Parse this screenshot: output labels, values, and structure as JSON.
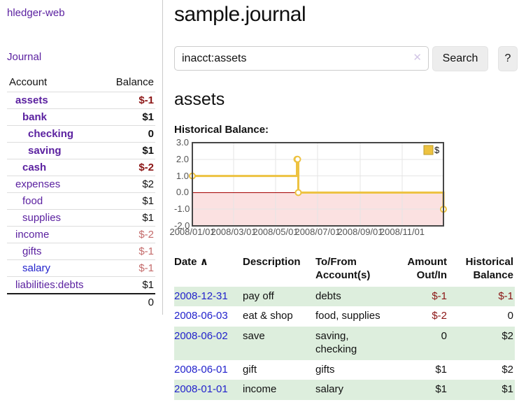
{
  "sidebar": {
    "app_title": "hledger-web",
    "journal_label": "Journal",
    "accounts": {
      "header_account": "Account",
      "header_balance": "Balance",
      "rows": [
        {
          "name": "assets",
          "balance": "$-1"
        },
        {
          "name": "bank",
          "balance": "$1"
        },
        {
          "name": "checking",
          "balance": "0"
        },
        {
          "name": "saving",
          "balance": "$1"
        },
        {
          "name": "cash",
          "balance": "$-2"
        },
        {
          "name": "expenses",
          "balance": "$2"
        },
        {
          "name": "food",
          "balance": "$1"
        },
        {
          "name": "supplies",
          "balance": "$1"
        },
        {
          "name": "income",
          "balance": "$-2"
        },
        {
          "name": "gifts",
          "balance": "$-1"
        },
        {
          "name": "salary",
          "balance": "$-1"
        },
        {
          "name": "liabilities:debts",
          "balance": "$1"
        }
      ],
      "total": "0"
    }
  },
  "main": {
    "title": "sample.journal",
    "search": {
      "value": "inacct:assets",
      "clear_icon": "✕",
      "button_label": "Search",
      "help_label": "?"
    },
    "account_heading": "assets",
    "chart_label": "Historical Balance:"
  },
  "chart_data": {
    "type": "line",
    "title": "Historical Balance",
    "series": [
      {
        "name": "$",
        "step": true,
        "points": [
          [
            "2008-01-01",
            1
          ],
          [
            "2008-06-01",
            2
          ],
          [
            "2008-06-02",
            2
          ],
          [
            "2008-06-03",
            0
          ],
          [
            "2008-12-31",
            -1
          ]
        ]
      }
    ],
    "x_range": [
      "2008-01-01",
      "2008-12-31"
    ],
    "ylim": [
      -2,
      3
    ],
    "y_ticks": [
      "3.0",
      "2.0",
      "1.0",
      "0.0",
      "-1.0",
      "-2.0"
    ],
    "x_ticks": [
      "2008/01/01",
      "2008/03/01",
      "2008/05/01",
      "2008/07/01",
      "2008/09/01",
      "2008/11/01"
    ],
    "grid": true,
    "legend_position": "top-right",
    "colors": {
      "series": "#edc240",
      "marker_fill": "#ffffff",
      "negative_region": "#fbe1e1",
      "zero_line": "#a40000",
      "grid": "#e5e5e5",
      "border": "#474747",
      "tick_text": "#545454"
    }
  },
  "register": {
    "headers": {
      "date": "Date",
      "sort_icon": "∧",
      "description": "Description",
      "accounts": "To/From Account(s)",
      "amount": "Amount Out/In",
      "balance": "Historical Balance"
    },
    "rows": [
      {
        "date": "2008-12-31",
        "description": "pay off",
        "accounts": "debts",
        "amount": "$-1",
        "balance": "$-1"
      },
      {
        "date": "2008-06-03",
        "description": "eat & shop",
        "accounts": "food, supplies",
        "amount": "$-2",
        "balance": "0"
      },
      {
        "date": "2008-06-02",
        "description": "save",
        "accounts": "saving, checking",
        "amount": "0",
        "balance": "$2"
      },
      {
        "date": "2008-06-01",
        "description": "gift",
        "accounts": "gifts",
        "amount": "$1",
        "balance": "$2"
      },
      {
        "date": "2008-01-01",
        "description": "income",
        "accounts": "salary",
        "amount": "$1",
        "balance": "$1"
      }
    ]
  },
  "colors": {
    "link_purple": "#5b21a0",
    "link_blue": "#2222cc",
    "negative_strong": "#8b1515",
    "negative_soft": "#c46b6b",
    "row_stripe_green": "#ddeedd"
  }
}
